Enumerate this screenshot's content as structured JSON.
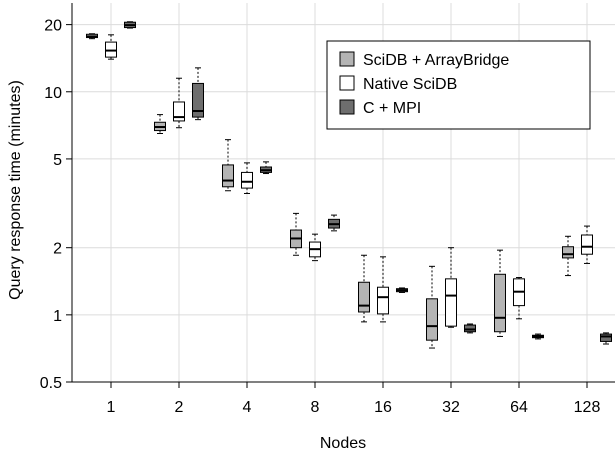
{
  "chart_data": {
    "type": "boxplot",
    "xlabel": "Nodes",
    "ylabel": "Query response time (minutes)",
    "yscale": "log",
    "ylim": [
      0.5,
      25
    ],
    "grid": true,
    "legend_position": "top-right",
    "categories": [
      "1",
      "2",
      "4",
      "8",
      "16",
      "32",
      "64",
      "128"
    ],
    "y_ticks": [
      0.5,
      1,
      2,
      5,
      10,
      20
    ],
    "y_tick_labels": [
      "0.5",
      "1",
      "2",
      "5",
      "10",
      "20"
    ],
    "series": [
      {
        "name": "SciDB + ArrayBridge",
        "color": "#b4b4b4",
        "boxes": [
          {
            "whisker_low": 17.3,
            "q1": 17.5,
            "median": 17.7,
            "q3": 18.1,
            "whisker_high": 18.2
          },
          {
            "whisker_low": 6.5,
            "q1": 6.7,
            "median": 6.95,
            "q3": 7.3,
            "whisker_high": 7.9
          },
          {
            "whisker_low": 3.6,
            "q1": 3.75,
            "median": 4.0,
            "q3": 4.7,
            "whisker_high": 6.1
          },
          {
            "whisker_low": 1.85,
            "q1": 2.0,
            "median": 2.2,
            "q3": 2.4,
            "whisker_high": 2.85
          },
          {
            "whisker_low": 0.93,
            "q1": 1.03,
            "median": 1.1,
            "q3": 1.4,
            "whisker_high": 1.85
          },
          {
            "whisker_low": 0.71,
            "q1": 0.77,
            "median": 0.89,
            "q3": 1.18,
            "whisker_high": 1.65
          },
          {
            "whisker_low": 0.8,
            "q1": 0.84,
            "median": 0.97,
            "q3": 1.52,
            "whisker_high": 1.95
          },
          {
            "whisker_low": 1.5,
            "q1": 1.8,
            "median": 1.87,
            "q3": 2.02,
            "whisker_high": 2.25
          }
        ]
      },
      {
        "name": "Native SciDB",
        "color": "#ffffff",
        "boxes": [
          {
            "whisker_low": 14.0,
            "q1": 14.3,
            "median": 15.3,
            "q3": 16.7,
            "whisker_high": 18.0
          },
          {
            "whisker_low": 6.9,
            "q1": 7.4,
            "median": 7.7,
            "q3": 9.0,
            "whisker_high": 11.5
          },
          {
            "whisker_low": 3.5,
            "q1": 3.7,
            "median": 3.95,
            "q3": 4.35,
            "whisker_high": 4.8
          },
          {
            "whisker_low": 1.75,
            "q1": 1.82,
            "median": 1.97,
            "q3": 2.12,
            "whisker_high": 2.3
          },
          {
            "whisker_low": 0.93,
            "q1": 1.01,
            "median": 1.2,
            "q3": 1.33,
            "whisker_high": 1.82
          },
          {
            "whisker_low": 0.88,
            "q1": 0.89,
            "median": 1.22,
            "q3": 1.45,
            "whisker_high": 2.0
          },
          {
            "whisker_low": 0.96,
            "q1": 1.1,
            "median": 1.27,
            "q3": 1.45,
            "whisker_high": 1.47
          },
          {
            "whisker_low": 1.7,
            "q1": 1.87,
            "median": 2.02,
            "q3": 2.28,
            "whisker_high": 2.5
          }
        ]
      },
      {
        "name": "C + MPI",
        "color": "#6e6e6e",
        "boxes": [
          {
            "whisker_low": 19.3,
            "q1": 19.4,
            "median": 19.9,
            "q3": 20.5,
            "whisker_high": 20.6
          },
          {
            "whisker_low": 7.5,
            "q1": 7.7,
            "median": 8.2,
            "q3": 10.9,
            "whisker_high": 12.8
          },
          {
            "whisker_low": 4.3,
            "q1": 4.35,
            "median": 4.45,
            "q3": 4.6,
            "whisker_high": 4.85
          },
          {
            "whisker_low": 2.38,
            "q1": 2.45,
            "median": 2.55,
            "q3": 2.68,
            "whisker_high": 2.8
          },
          {
            "whisker_low": 1.26,
            "q1": 1.27,
            "median": 1.29,
            "q3": 1.31,
            "whisker_high": 1.32
          },
          {
            "whisker_low": 0.83,
            "q1": 0.84,
            "median": 0.86,
            "q3": 0.9,
            "whisker_high": 0.91
          },
          {
            "whisker_low": 0.78,
            "q1": 0.79,
            "median": 0.8,
            "q3": 0.81,
            "whisker_high": 0.82
          },
          {
            "whisker_low": 0.74,
            "q1": 0.76,
            "median": 0.8,
            "q3": 0.82,
            "whisker_high": 0.83
          }
        ]
      }
    ]
  }
}
